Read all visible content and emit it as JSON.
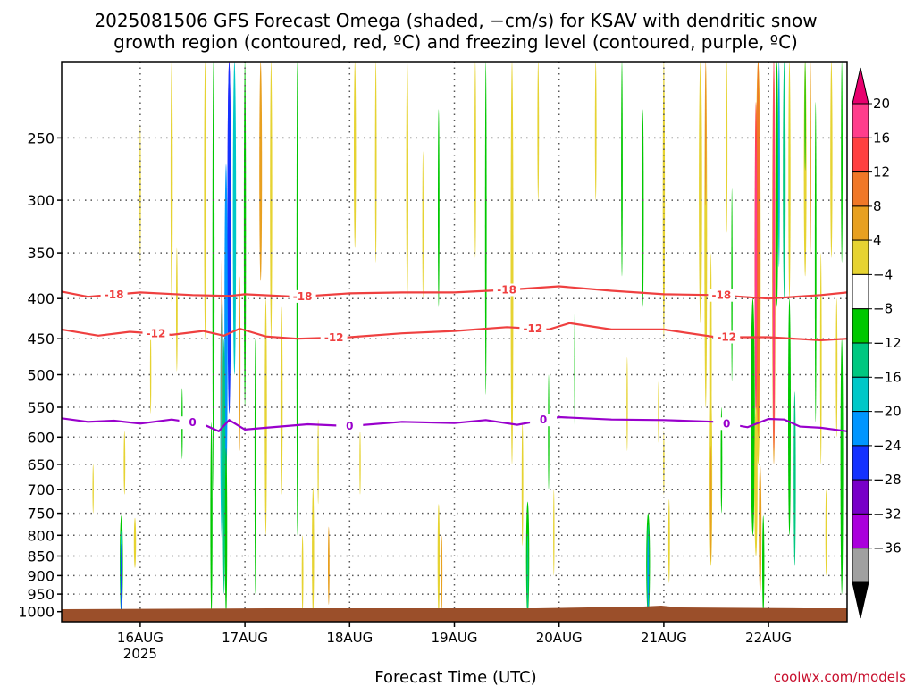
{
  "title": {
    "line1": "2025081506 GFS Forecast Omega (shaded, −cm/s) for KSAV with dendritic snow",
    "line2": "growth region (contoured, red, ºC) and freezing level (contoured, purple, ºC)"
  },
  "credit": "coolwx.com/models",
  "colors": {
    "dgz_contour": "#ef4040",
    "freezing_contour": "#9900cc",
    "ground": "#9b4f2a",
    "grid": "#555555"
  },
  "chart_data": {
    "type": "heatmap",
    "title": "2025081506 GFS Forecast Omega (shaded, −cm/s) for KSAV with dendritic snow growth region (contoured, red, ºC) and freezing level (contoured, purple, ºC)",
    "xlabel": "Forecast Time (UTC)",
    "ylabel": "",
    "x_ticks": [
      {
        "day": 16,
        "label": "16AUG",
        "sub": "2025"
      },
      {
        "day": 17,
        "label": "17AUG",
        "sub": ""
      },
      {
        "day": 18,
        "label": "18AUG",
        "sub": ""
      },
      {
        "day": 19,
        "label": "19AUG",
        "sub": ""
      },
      {
        "day": 20,
        "label": "20AUG",
        "sub": ""
      },
      {
        "day": 21,
        "label": "21AUG",
        "sub": ""
      },
      {
        "day": 22,
        "label": "22AUG",
        "sub": ""
      }
    ],
    "xlim_days": [
      15.25,
      22.75
    ],
    "y_scale": "log-pressure",
    "ylim_hpa": [
      1030,
      200
    ],
    "y_ticks": [
      250,
      300,
      350,
      400,
      450,
      500,
      550,
      600,
      650,
      700,
      750,
      800,
      850,
      900,
      950,
      1000
    ],
    "grid": true,
    "colorbar": {
      "labels": [
        "20",
        "16",
        "12",
        "8",
        "4",
        "−4",
        "−8",
        "−12",
        "−16",
        "−20",
        "−24",
        "−28",
        "−32",
        "−36"
      ],
      "levels": [
        {
          "lo": 20,
          "hi": 24,
          "color": "#ff3d8c"
        },
        {
          "lo": 16,
          "hi": 20,
          "color": "#ff4040"
        },
        {
          "lo": 12,
          "hi": 16,
          "color": "#f07828"
        },
        {
          "lo": 8,
          "hi": 12,
          "color": "#e8a020"
        },
        {
          "lo": 4,
          "hi": 8,
          "color": "#e6d332"
        },
        {
          "lo": -4,
          "hi": 4,
          "color": "#ffffff"
        },
        {
          "lo": -8,
          "hi": -4,
          "color": "#00c800"
        },
        {
          "lo": -12,
          "hi": -8,
          "color": "#00c880"
        },
        {
          "lo": -16,
          "hi": -12,
          "color": "#00c8c8"
        },
        {
          "lo": -20,
          "hi": -16,
          "color": "#0096ff"
        },
        {
          "lo": -24,
          "hi": -20,
          "color": "#1432ff"
        },
        {
          "lo": -28,
          "hi": -24,
          "color": "#7800c8"
        },
        {
          "lo": -32,
          "hi": -28,
          "color": "#aa00dc"
        },
        {
          "lo": -36,
          "hi": -32,
          "color": "#a0a0a0"
        }
      ],
      "top_arrow_color": "#e8006e",
      "bottom_arrow_color": "#000000"
    },
    "series": [
      {
        "label": "-18",
        "color": "#ef4040",
        "points": [
          [
            15.25,
            392
          ],
          [
            15.5,
            398
          ],
          [
            16.0,
            393
          ],
          [
            16.5,
            396
          ],
          [
            16.85,
            397
          ],
          [
            17.0,
            395
          ],
          [
            17.5,
            398
          ],
          [
            18.0,
            394
          ],
          [
            18.5,
            393
          ],
          [
            19.0,
            393
          ],
          [
            19.5,
            390
          ],
          [
            20.0,
            386
          ],
          [
            20.5,
            391
          ],
          [
            21.0,
            395
          ],
          [
            21.5,
            396
          ],
          [
            22.0,
            400
          ],
          [
            22.5,
            396
          ],
          [
            22.75,
            393
          ]
        ],
        "label_days": [
          15.75,
          17.55,
          19.5,
          21.55
        ]
      },
      {
        "label": "-12",
        "color": "#ef4040",
        "points": [
          [
            15.25,
            438
          ],
          [
            15.6,
            446
          ],
          [
            15.9,
            441
          ],
          [
            16.3,
            445
          ],
          [
            16.6,
            440
          ],
          [
            16.8,
            446
          ],
          [
            16.95,
            437
          ],
          [
            17.2,
            447
          ],
          [
            17.5,
            450
          ],
          [
            18.0,
            448
          ],
          [
            18.5,
            443
          ],
          [
            19.0,
            440
          ],
          [
            19.5,
            435
          ],
          [
            19.9,
            438
          ],
          [
            20.1,
            430
          ],
          [
            20.5,
            438
          ],
          [
            21.0,
            438
          ],
          [
            21.5,
            448
          ],
          [
            22.0,
            448
          ],
          [
            22.5,
            452
          ],
          [
            22.75,
            450
          ]
        ],
        "label_days": [
          16.15,
          17.85,
          19.75,
          21.6
        ]
      },
      {
        "label": "0",
        "color": "#9900cc",
        "points": [
          [
            15.25,
            568
          ],
          [
            15.5,
            574
          ],
          [
            15.75,
            572
          ],
          [
            16.0,
            577
          ],
          [
            16.3,
            570
          ],
          [
            16.6,
            578
          ],
          [
            16.75,
            590
          ],
          [
            16.85,
            571
          ],
          [
            17.0,
            587
          ],
          [
            17.2,
            584
          ],
          [
            17.6,
            578
          ],
          [
            18.0,
            581
          ],
          [
            18.5,
            574
          ],
          [
            19.0,
            576
          ],
          [
            19.3,
            571
          ],
          [
            19.6,
            579
          ],
          [
            20.0,
            566
          ],
          [
            20.5,
            570
          ],
          [
            21.0,
            571
          ],
          [
            21.5,
            574
          ],
          [
            21.8,
            583
          ],
          [
            22.0,
            569
          ],
          [
            22.15,
            570
          ],
          [
            22.3,
            582
          ],
          [
            22.5,
            584
          ],
          [
            22.75,
            590
          ]
        ],
        "label_days": [
          16.5,
          18.0,
          19.85,
          21.6
        ]
      }
    ]
  }
}
